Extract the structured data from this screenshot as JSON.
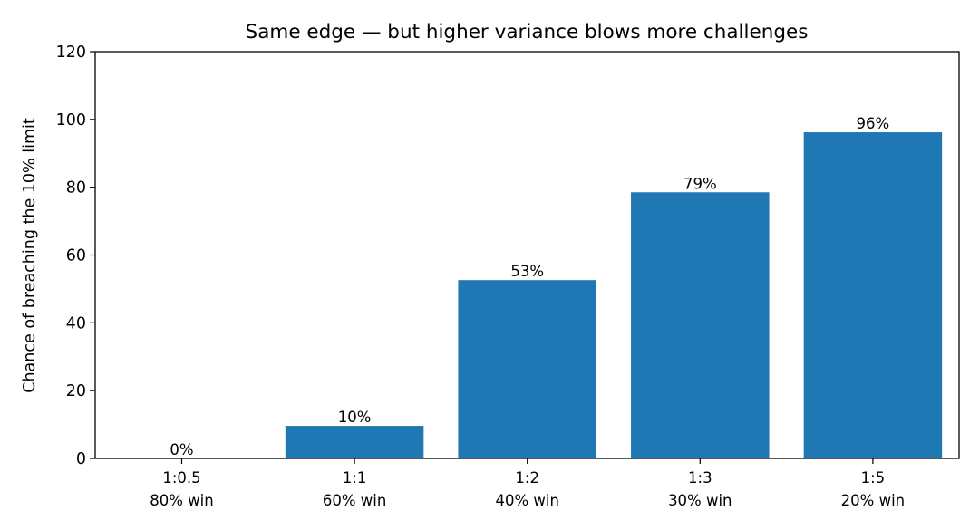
{
  "chart_data": {
    "type": "bar",
    "title": "Same edge — but higher variance blows more challenges",
    "ylabel": "Chance of breaching the 10% limit",
    "xlabel": "",
    "ylim": [
      0,
      120
    ],
    "yticks": [
      0,
      20,
      40,
      60,
      80,
      100,
      120
    ],
    "grid": false,
    "bar_color": "#1f77b4",
    "categories": [
      {
        "ratio": "1:0.5",
        "win": "80% win"
      },
      {
        "ratio": "1:1",
        "win": "60% win"
      },
      {
        "ratio": "1:2",
        "win": "40% win"
      },
      {
        "ratio": "1:3",
        "win": "30% win"
      },
      {
        "ratio": "1:5",
        "win": "20% win"
      }
    ],
    "values": [
      0,
      9.6,
      52.6,
      78.5,
      96.2
    ],
    "value_labels": [
      "0%",
      "10%",
      "53%",
      "79%",
      "96%"
    ]
  }
}
